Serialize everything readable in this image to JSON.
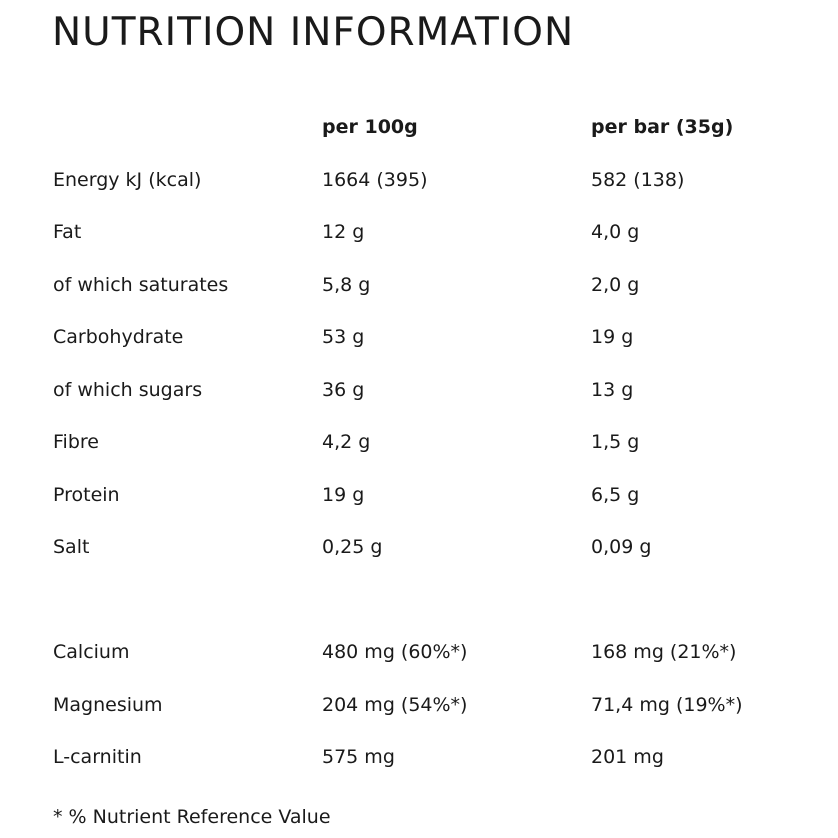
{
  "title": "NUTRITION INFORMATION",
  "headers": {
    "per_100g": "per 100g",
    "per_bar": "per bar (35g)"
  },
  "rows": [
    {
      "label": "Energy kJ (kcal)",
      "per_100g": "1664 (395)",
      "per_bar": "582 (138)"
    },
    {
      "label": "Fat",
      "per_100g": "12 g",
      "per_bar": "4,0 g"
    },
    {
      "label": "of which saturates",
      "per_100g": "5,8 g",
      "per_bar": "2,0 g"
    },
    {
      "label": "Carbohydrate",
      "per_100g": "53 g",
      "per_bar": "19 g"
    },
    {
      "label": "of which sugars",
      "per_100g": "36 g",
      "per_bar": "13 g"
    },
    {
      "label": "Fibre",
      "per_100g": "4,2 g",
      "per_bar": "1,5 g"
    },
    {
      "label": "Protein",
      "per_100g": "19 g",
      "per_bar": "6,5 g"
    },
    {
      "label": "Salt",
      "per_100g": "0,25 g",
      "per_bar": "0,09 g"
    }
  ],
  "micro_rows": [
    {
      "label": "Calcium",
      "per_100g": "480 mg (60%*)",
      "per_bar": "168 mg (21%*)"
    },
    {
      "label": "Magnesium",
      "per_100g": "204 mg (54%*)",
      "per_bar": "71,4 mg (19%*)"
    },
    {
      "label": "L-carnitin",
      "per_100g": "575 mg",
      "per_bar": "201 mg"
    }
  ],
  "footnote": "* % Nutrient Reference Value"
}
